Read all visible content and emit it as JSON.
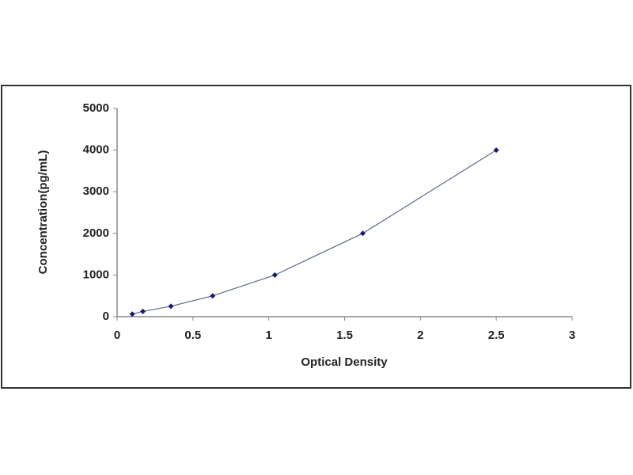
{
  "chart_data": {
    "type": "scatter",
    "x_label": "Optical Density",
    "y_label": "Concentration(pg/mL)",
    "series": [
      {
        "x": [
          0.1,
          0.17,
          0.355,
          0.63,
          1.04,
          1.62,
          2.5
        ],
        "values": [
          62.5,
          125,
          250,
          500,
          1000,
          2000,
          4000
        ],
        "color": "#1a1a6e"
      }
    ],
    "line_color": "#5a6a8a",
    "xlim": [
      0,
      3
    ],
    "xticks": [
      0,
      0.5,
      1,
      1.5,
      2,
      2.5,
      3
    ],
    "ylim": [
      0,
      5000
    ],
    "yticks": [
      0,
      1000,
      2000,
      3000,
      4000,
      5000
    ],
    "grid": false
  }
}
